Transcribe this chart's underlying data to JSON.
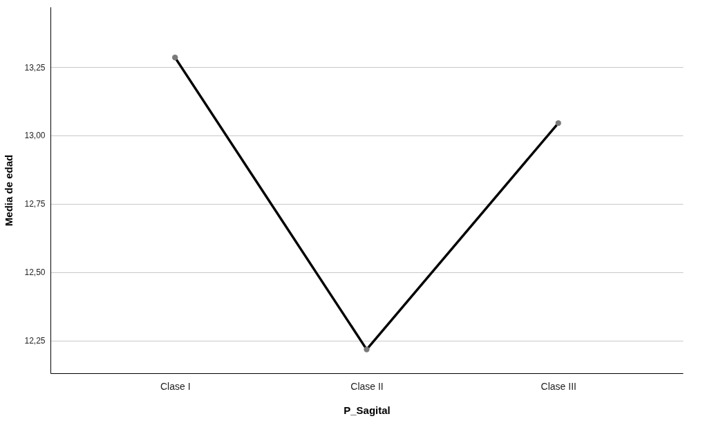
{
  "chart_data": {
    "type": "line",
    "xlabel": "P_Sagital",
    "ylabel": "Media de edad",
    "categories": [
      "Clase I",
      "Clase II",
      "Clase III"
    ],
    "series": [
      {
        "color": "#000000",
        "values": [
          13.285,
          12.217,
          13.045
        ]
      }
    ],
    "ylim": [
      12.13,
      13.47
    ],
    "yticks": [
      {
        "value": 12.25,
        "label": "12,25"
      },
      {
        "value": 12.5,
        "label": "12,50"
      },
      {
        "value": 12.75,
        "label": "12,75"
      },
      {
        "value": 13.0,
        "label": "13,00"
      },
      {
        "value": 13.25,
        "label": "13,25"
      }
    ],
    "grid": "y",
    "marker": "circle"
  }
}
